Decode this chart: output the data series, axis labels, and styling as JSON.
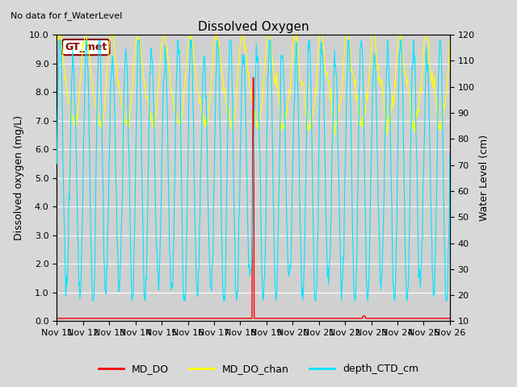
{
  "title": "Dissolved Oxygen",
  "top_left_text": "No data for f_WaterLevel",
  "ylabel_left": "Dissolved oxygen (mg/L)",
  "ylabel_right": "Water Level (cm)",
  "ylim_left": [
    0.0,
    10.0
  ],
  "ylim_right": [
    10,
    120
  ],
  "yticks_left": [
    0.0,
    1.0,
    2.0,
    3.0,
    4.0,
    5.0,
    6.0,
    7.0,
    8.0,
    9.0,
    10.0
  ],
  "yticks_right": [
    10,
    20,
    30,
    40,
    50,
    60,
    70,
    80,
    90,
    100,
    110,
    120
  ],
  "background_color": "#d8d8d8",
  "plot_bg_color": "#d0d0d0",
  "grid_color": "#ffffff",
  "color_MD_DO": "#ff0000",
  "color_MD_DO_chan": "#ffff00",
  "color_depth_CTD": "#00e5ff",
  "legend_labels": [
    "MD_DO",
    "MD_DO_chan",
    "depth_CTD_cm"
  ],
  "box_label": "GT_met",
  "n_days": 15,
  "xtick_labels": [
    "Nov 11",
    "Nov 12",
    "Nov 13",
    "Nov 14",
    "Nov 15",
    "Nov 16",
    "Nov 17",
    "Nov 18",
    "Nov 19",
    "Nov 20",
    "Nov 21",
    "Nov 22",
    "Nov 23",
    "Nov 24",
    "Nov 25",
    "Nov 26"
  ]
}
